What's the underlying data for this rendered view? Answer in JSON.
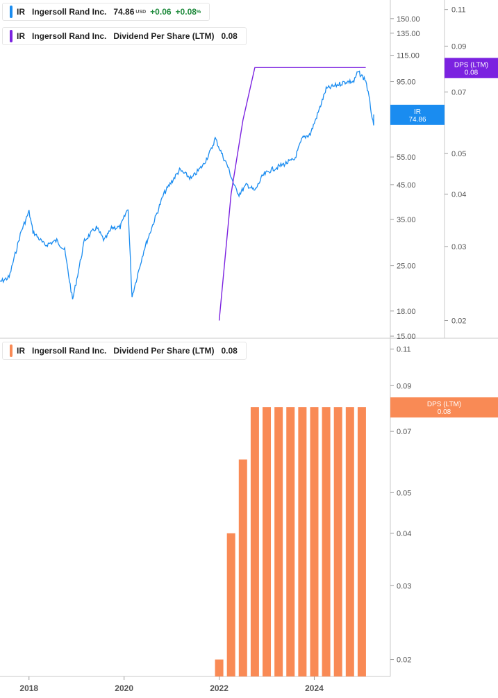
{
  "legends": {
    "price": {
      "ticker": "IR",
      "company": "Ingersoll Rand Inc.",
      "price": "74.86",
      "currency": "USD",
      "change": "+0.06",
      "change_pct": "+0.08",
      "pct_sign": "%",
      "color": "#1a8cf0"
    },
    "dps_line": {
      "ticker": "IR",
      "company": "Ingersoll Rand Inc.",
      "metric": "Dividend Per Share (LTM)",
      "value": "0.08",
      "color": "#7b22e0"
    },
    "dps_bars": {
      "ticker": "IR",
      "company": "Ingersoll Rand Inc.",
      "metric": "Dividend Per Share (LTM)",
      "value": "0.08",
      "color": "#f98a55"
    }
  },
  "badges": {
    "price": {
      "line1": "IR",
      "line2": "74.86",
      "color": "#1a8cf0",
      "hidden_tick": "75"
    },
    "dps_top": {
      "line1": "DPS (LTM)",
      "line2": "0.08",
      "color": "#7b22e0"
    },
    "dps_bottom": {
      "line1": "DPS (LTM)",
      "line2": "0.08",
      "color": "#f98a55"
    }
  },
  "chart_data": [
    {
      "type": "line",
      "scale": "log",
      "series": [
        {
          "name": "IR",
          "x": [
            "2017-05",
            "2017-08",
            "2017-11",
            "2018-01",
            "2018-02",
            "2018-05",
            "2018-08",
            "2018-10",
            "2018-12",
            "2019-03",
            "2019-06",
            "2019-08",
            "2019-10",
            "2019-12",
            "2020-02",
            "2020-03",
            "2020-06",
            "2020-08",
            "2020-11",
            "2021-01",
            "2021-03",
            "2021-06",
            "2021-09",
            "2021-11",
            "2021-12",
            "2022-02",
            "2022-03",
            "2022-05",
            "2022-06",
            "2022-08",
            "2022-10",
            "2022-12",
            "2023-02",
            "2023-05",
            "2023-08",
            "2023-10",
            "2023-12",
            "2024-02",
            "2024-04",
            "2024-07",
            "2024-09",
            "2024-11",
            "2024-12",
            "2025-02",
            "2025-03",
            "2025-04",
            "2025-04"
          ],
          "y": [
            22,
            23,
            32,
            37,
            32,
            29,
            30,
            28,
            19.5,
            30,
            33,
            30,
            33,
            33,
            38,
            20,
            28,
            33,
            42,
            46,
            50,
            47,
            52,
            58,
            63,
            55,
            52,
            44,
            42,
            45,
            43,
            48,
            50,
            52,
            54,
            63,
            65,
            76,
            90,
            93,
            95,
            95,
            102,
            96,
            82,
            68,
            74.86
          ]
        }
      ],
      "ylim": [
        15,
        170
      ],
      "yticks": [
        150,
        135,
        115,
        95,
        75,
        55,
        45,
        35,
        25,
        18,
        15
      ],
      "ytick_labels": [
        "150.00",
        "135.00",
        "115.00",
        "95.00",
        "75.00",
        "55.00",
        "45.00",
        "35.00",
        "25.00",
        "18.00",
        "15.00"
      ]
    },
    {
      "type": "line",
      "scale": "log",
      "series": [
        {
          "name": "Dividend Per Share (LTM)",
          "x": [
            "2022-01",
            "2022-04",
            "2022-07",
            "2022-10",
            "2025-02"
          ],
          "y": [
            0.02,
            0.04,
            0.06,
            0.08,
            0.08
          ]
        }
      ],
      "ylim": [
        0.0185,
        0.115
      ],
      "yticks": [
        0.11,
        0.09,
        0.07,
        0.05,
        0.04,
        0.03,
        0.02
      ],
      "ytick_labels": [
        "0.11",
        "0.09",
        "0.07",
        "0.05",
        "0.04",
        "0.03",
        "0.02"
      ]
    },
    {
      "type": "bar",
      "scale": "log",
      "series": [
        {
          "name": "Dividend Per Share (LTM)",
          "x": [
            "2022-01",
            "2022-04",
            "2022-07",
            "2022-10",
            "2023-01",
            "2023-04",
            "2023-07",
            "2023-10",
            "2024-01",
            "2024-04",
            "2024-07",
            "2024-10",
            "2025-01"
          ],
          "y": [
            0.02,
            0.04,
            0.06,
            0.08,
            0.08,
            0.08,
            0.08,
            0.08,
            0.08,
            0.08,
            0.08,
            0.08,
            0.08
          ]
        }
      ],
      "ylim": [
        0.0185,
        0.115
      ],
      "yticks": [
        0.11,
        0.09,
        0.07,
        0.05,
        0.04,
        0.03,
        0.02
      ],
      "ytick_labels": [
        "0.11",
        "0.09",
        "0.07",
        "0.05",
        "0.04",
        "0.03",
        "0.02"
      ],
      "xticks": [
        "2018",
        "2020",
        "2022",
        "2024"
      ]
    }
  ]
}
